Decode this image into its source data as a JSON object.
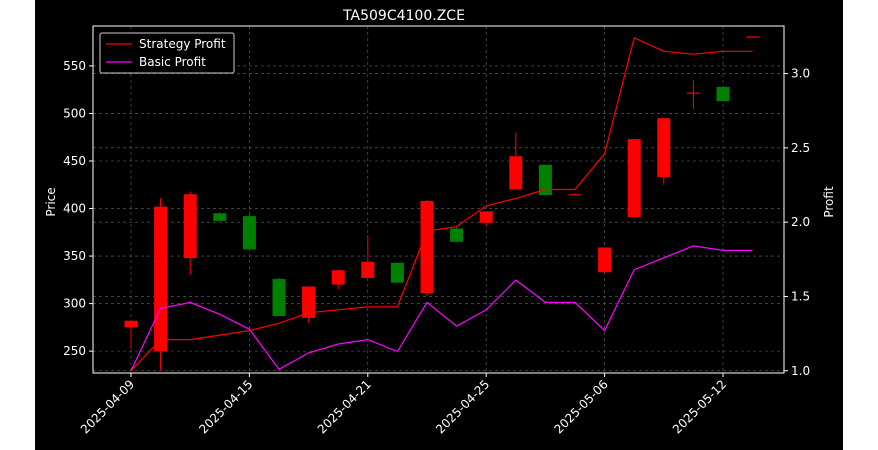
{
  "chart_data": {
    "type": "candlestick",
    "title": "TA509C4100.ZCE",
    "ylabel": "Price",
    "y2label": "Profit",
    "ylim": [
      227,
      592
    ],
    "y2lim": [
      0.985,
      3.32
    ],
    "yticks": [
      250,
      300,
      350,
      400,
      450,
      500,
      550
    ],
    "y2ticks": [
      1.0,
      1.5,
      2.0,
      2.5,
      3.0
    ],
    "y2tick_labels": [
      "1.0",
      "1.5",
      "2.0",
      "2.5",
      "3.0"
    ],
    "x_tick_labels": [
      {
        "index": 0,
        "label": "2025-04-09"
      },
      {
        "index": 4,
        "label": "2025-04-15"
      },
      {
        "index": 8,
        "label": "2025-04-21"
      },
      {
        "index": 12,
        "label": "2025-04-25"
      },
      {
        "index": 16,
        "label": "2025-05-06"
      },
      {
        "index": 20,
        "label": "2025-05-12"
      }
    ],
    "grid": true,
    "legend_position": "top-left",
    "colors": {
      "up": "#ff0000",
      "down": "#008000",
      "strategy": "#ff0000",
      "basic": "#ff00ff",
      "grid": "#666666",
      "background": "#000000"
    },
    "candles": [
      {
        "open": 275,
        "high": 281,
        "low": 252,
        "close": 282
      },
      {
        "open": 250,
        "high": 411,
        "low": 230,
        "close": 402
      },
      {
        "open": 348,
        "high": 418,
        "low": 330,
        "close": 415
      },
      {
        "open": 395,
        "high": 396,
        "low": 387,
        "close": 387
      },
      {
        "open": 392,
        "high": 393,
        "low": 357,
        "close": 357
      },
      {
        "open": 326,
        "high": 327,
        "low": 287,
        "close": 287
      },
      {
        "open": 285,
        "high": 318,
        "low": 280,
        "close": 318
      },
      {
        "open": 320,
        "high": 336,
        "low": 315,
        "close": 335
      },
      {
        "open": 327,
        "high": 372,
        "low": 327,
        "close": 344
      },
      {
        "open": 343,
        "high": 343,
        "low": 322,
        "close": 322
      },
      {
        "open": 311,
        "high": 409,
        "low": 308,
        "close": 408
      },
      {
        "open": 379,
        "high": 381,
        "low": 365,
        "close": 365
      },
      {
        "open": 385,
        "high": 397,
        "low": 381,
        "close": 397
      },
      {
        "open": 420,
        "high": 480,
        "low": 420,
        "close": 455
      },
      {
        "open": 446,
        "high": 446,
        "low": 414,
        "close": 414
      },
      {
        "open": 415,
        "high": 416,
        "low": 414,
        "close": 415
      },
      {
        "open": 333,
        "high": 359,
        "low": 333,
        "close": 359
      },
      {
        "open": 391,
        "high": 473,
        "low": 391,
        "close": 473
      },
      {
        "open": 433,
        "high": 495,
        "low": 425,
        "close": 495
      },
      {
        "open": 522,
        "high": 535,
        "low": 505,
        "close": 522
      },
      {
        "open": 528,
        "high": 528,
        "low": 513,
        "close": 513
      },
      {
        "open": 580,
        "high": 581,
        "low": 580,
        "close": 581
      }
    ],
    "series": [
      {
        "name": "Strategy Profit",
        "axis": "right",
        "color": "#ff0000",
        "values": [
          1.0,
          1.21,
          1.21,
          1.24,
          1.27,
          1.32,
          1.39,
          1.41,
          1.43,
          1.43,
          1.94,
          1.97,
          2.11,
          2.16,
          2.22,
          2.22,
          2.46,
          3.24,
          3.15,
          3.13,
          3.15,
          3.15
        ]
      },
      {
        "name": "Basic Profit",
        "axis": "right",
        "color": "#ff00ff",
        "values": [
          1.0,
          1.42,
          1.46,
          1.38,
          1.28,
          1.01,
          1.12,
          1.18,
          1.21,
          1.13,
          1.46,
          1.3,
          1.41,
          1.61,
          1.46,
          1.46,
          1.27,
          1.68,
          1.76,
          1.84,
          1.81,
          1.81
        ]
      }
    ]
  }
}
